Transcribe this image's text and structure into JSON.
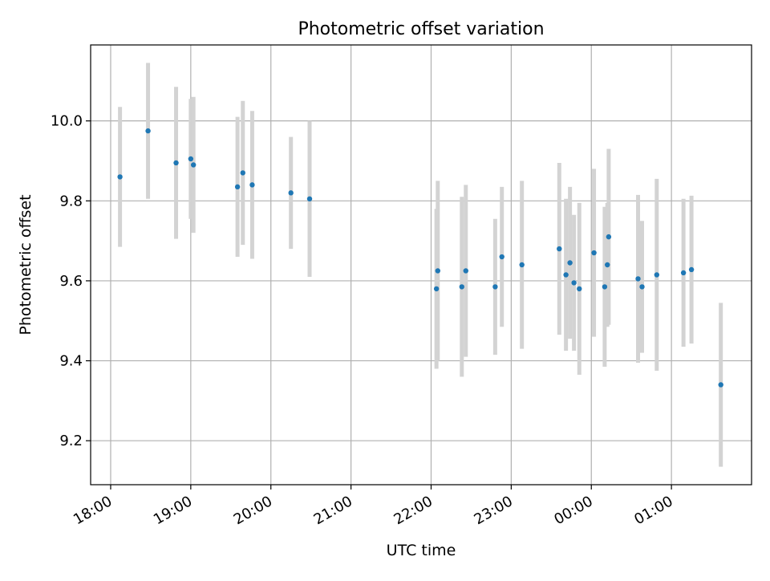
{
  "chart_data": {
    "type": "scatter",
    "title": "Photometric offset variation",
    "xlabel": "UTC time",
    "ylabel": "Photometric offset",
    "x_axis_type": "time",
    "x_ticks": [
      "18:00",
      "19:00",
      "20:00",
      "21:00",
      "22:00",
      "23:00",
      "00:00",
      "01:00"
    ],
    "y_ticks": [
      "9.2",
      "9.4",
      "9.6",
      "9.8",
      "10.0"
    ],
    "xlim": [
      "17:45",
      "02:00"
    ],
    "ylim": [
      9.09,
      10.19
    ],
    "grid": true,
    "series": [
      {
        "marker_color": "#1f77b4",
        "errorbar_color": "#d3d3d3",
        "points": [
          {
            "x": "18:07",
            "y": 9.86,
            "yerr": 0.175
          },
          {
            "x": "18:28",
            "y": 9.975,
            "yerr": 0.17
          },
          {
            "x": "18:49",
            "y": 9.895,
            "yerr": 0.19
          },
          {
            "x": "19:00",
            "y": 9.905,
            "yerr": 0.15
          },
          {
            "x": "19:02",
            "y": 9.89,
            "yerr": 0.17
          },
          {
            "x": "19:35",
            "y": 9.835,
            "yerr": 0.175
          },
          {
            "x": "19:39",
            "y": 9.87,
            "yerr": 0.18
          },
          {
            "x": "19:46",
            "y": 9.84,
            "yerr": 0.185
          },
          {
            "x": "20:15",
            "y": 9.82,
            "yerr": 0.14
          },
          {
            "x": "20:29",
            "y": 9.805,
            "yerr": 0.195
          },
          {
            "x": "22:04",
            "y": 9.58,
            "yerr": 0.2
          },
          {
            "x": "22:05",
            "y": 9.625,
            "yerr": 0.225
          },
          {
            "x": "22:23",
            "y": 9.585,
            "yerr": 0.225
          },
          {
            "x": "22:26",
            "y": 9.625,
            "yerr": 0.215
          },
          {
            "x": "22:48",
            "y": 9.585,
            "yerr": 0.17
          },
          {
            "x": "22:53",
            "y": 9.66,
            "yerr": 0.175
          },
          {
            "x": "23:08",
            "y": 9.64,
            "yerr": 0.21
          },
          {
            "x": "23:36",
            "y": 9.68,
            "yerr": 0.215
          },
          {
            "x": "23:41",
            "y": 9.615,
            "yerr": 0.19
          },
          {
            "x": "23:44",
            "y": 9.645,
            "yerr": 0.19
          },
          {
            "x": "23:47",
            "y": 9.595,
            "yerr": 0.17
          },
          {
            "x": "23:51",
            "y": 9.58,
            "yerr": 0.215
          },
          {
            "x": "00:02",
            "y": 9.67,
            "yerr": 0.21
          },
          {
            "x": "00:10",
            "y": 9.585,
            "yerr": 0.2
          },
          {
            "x": "00:12",
            "y": 9.64,
            "yerr": 0.155
          },
          {
            "x": "00:13",
            "y": 9.71,
            "yerr": 0.22
          },
          {
            "x": "00:35",
            "y": 9.605,
            "yerr": 0.21
          },
          {
            "x": "00:38",
            "y": 9.585,
            "yerr": 0.165
          },
          {
            "x": "00:49",
            "y": 9.615,
            "yerr": 0.24
          },
          {
            "x": "01:09",
            "y": 9.62,
            "yerr": 0.185
          },
          {
            "x": "01:15",
            "y": 9.628,
            "yerr": 0.185
          },
          {
            "x": "01:37",
            "y": 9.34,
            "yerr": 0.205
          }
        ]
      }
    ]
  }
}
